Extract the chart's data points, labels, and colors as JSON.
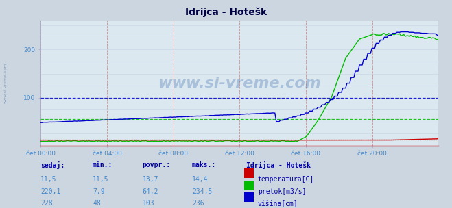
{
  "title": "Idrijca - Hotešk",
  "bg_color": "#ccd6e0",
  "plot_bg_color": "#dce8f0",
  "watermark_text": "www.si-vreme.com",
  "title_color": "#000044",
  "n_points": 288,
  "ymax": 260,
  "ymin": 0,
  "xtick_labels": [
    "čet 00:00",
    "čet 04:00",
    "čet 08:00",
    "čet 12:00",
    "čet 16:00",
    "čet 20:00"
  ],
  "xtick_positions": [
    0,
    240,
    480,
    720,
    960,
    1200
  ],
  "dashed_line_visina": 100,
  "dashed_line_pretok": 55,
  "dashed_line_temp": 13,
  "color_temp": "#cc0000",
  "color_pretok": "#00bb00",
  "color_visina": "#0000cc",
  "legend_title": "Idrijca - Hotešk",
  "table_headers": [
    "sedaj:",
    "min.:",
    "povpr.:",
    "maks.:"
  ],
  "table_col1": [
    "11,5",
    "220,1",
    "228"
  ],
  "table_col2": [
    "11,5",
    "7,9",
    "48"
  ],
  "table_col3": [
    "13,7",
    "64,2",
    "103"
  ],
  "table_col4": [
    "14,4",
    "234,5",
    "236"
  ],
  "legend_labels": [
    "temperatura[C]",
    "pretok[m3/s]",
    "višina[cm]"
  ],
  "legend_colors": [
    "#cc0000",
    "#00bb00",
    "#0000cc"
  ],
  "tick_color": "#4488cc",
  "header_color": "#0000aa",
  "data_color": "#4488cc"
}
